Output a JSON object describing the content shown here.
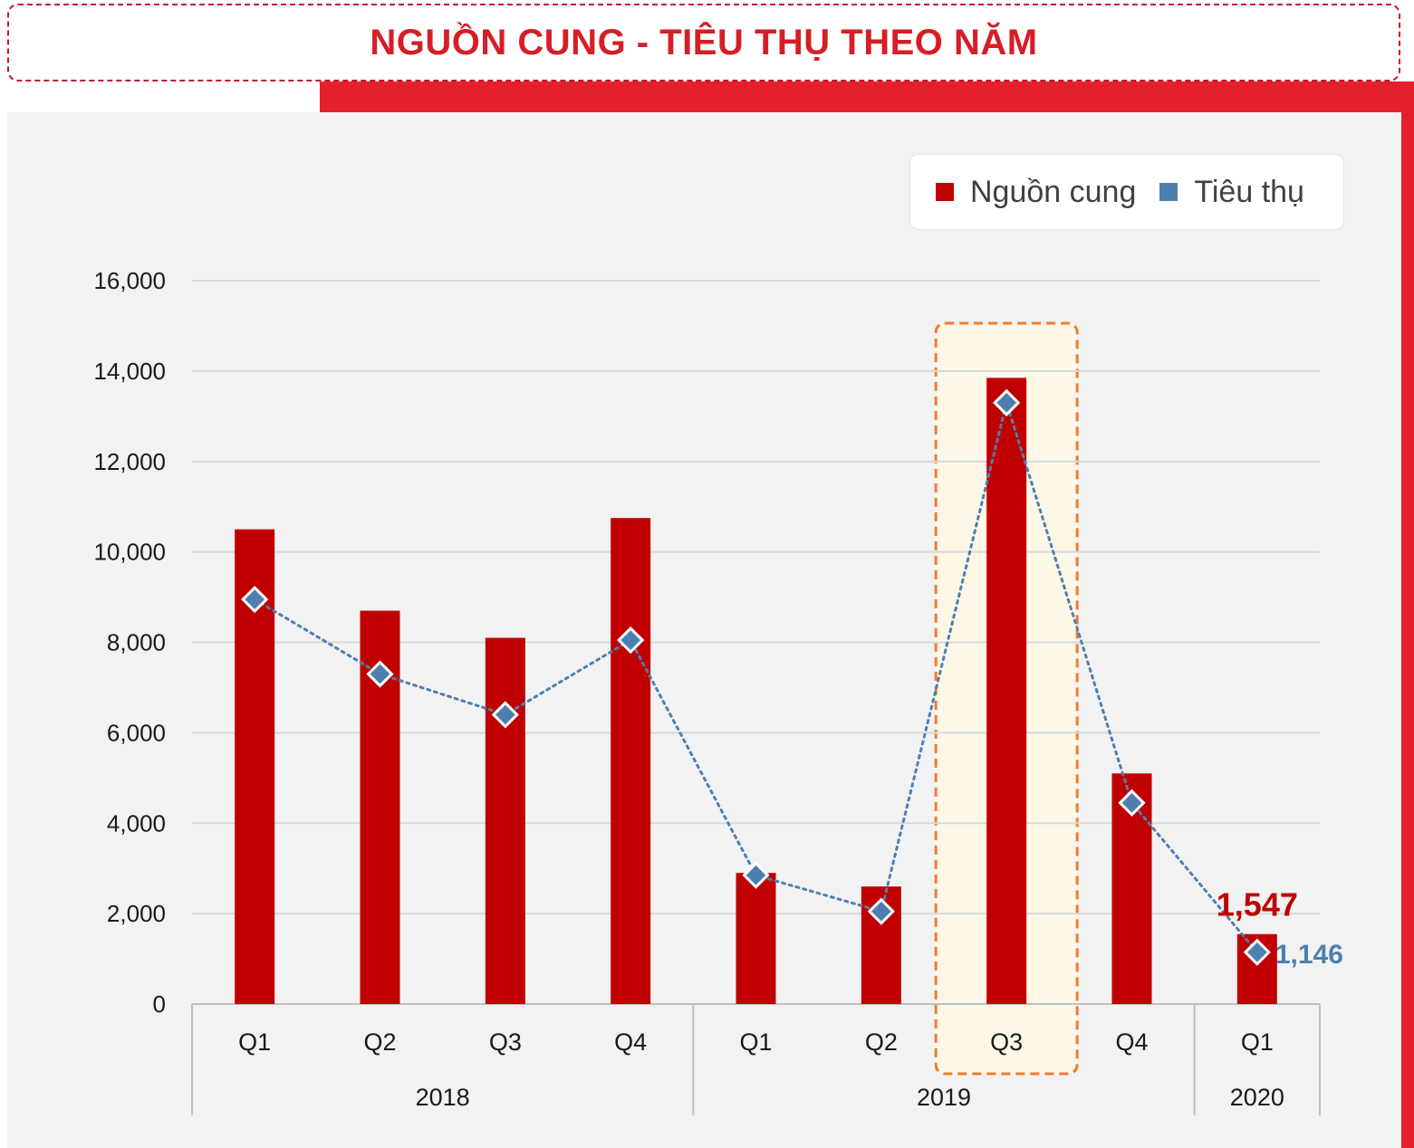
{
  "header": {
    "title": "NGUỒN CUNG - TIÊU THỤ THEO NĂM"
  },
  "colors": {
    "supply": "#c00000",
    "consumption": "#4e7fb0",
    "highlight_border": "#ed7d31",
    "highlight_fill": "#fdf7e8"
  },
  "chart_data": {
    "type": "bar",
    "categories": [
      "Q1",
      "Q2",
      "Q3",
      "Q4",
      "Q1",
      "Q2",
      "Q3",
      "Q4",
      "Q1"
    ],
    "groups": [
      {
        "label": "2018",
        "count": 4
      },
      {
        "label": "2019",
        "count": 4
      },
      {
        "label": "2020",
        "count": 1
      }
    ],
    "series": [
      {
        "name": "Nguồn cung",
        "type": "bar",
        "color": "#c00000",
        "values": [
          10500,
          8700,
          8100,
          10750,
          2900,
          2600,
          13850,
          5100,
          1547
        ]
      },
      {
        "name": "Tiêu thụ",
        "type": "line",
        "line_style": "dotted",
        "marker": "diamond",
        "color": "#4e7fb0",
        "values": [
          8950,
          7300,
          6400,
          8050,
          2850,
          2050,
          13300,
          4450,
          1146
        ]
      }
    ],
    "y_ticks": [
      "0",
      "2,000",
      "4,000",
      "6,000",
      "8,000",
      "10,000",
      "12,000",
      "14,000",
      "16,000"
    ],
    "ylim": [
      0,
      16000
    ],
    "grid": true,
    "legend_position": "top-right",
    "highlighted_category": "2019 Q3",
    "annotations": [
      {
        "text": "1,547",
        "series": "Nguồn cung",
        "category_index": 8
      },
      {
        "text": "1,146",
        "series": "Tiêu thụ",
        "category_index": 8
      }
    ]
  }
}
